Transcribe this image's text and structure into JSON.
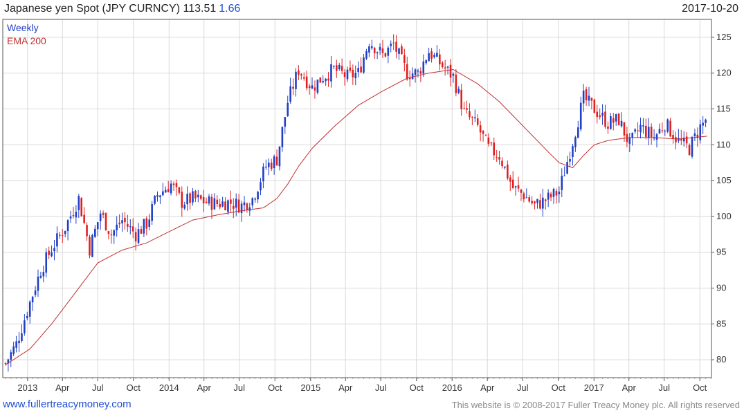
{
  "header": {
    "title": "Japanese yen Spot (JPY CURNCY)",
    "last": "113.51",
    "change": "1.66",
    "date": "2017-10-20"
  },
  "footer": {
    "site": "www.fullertreacymoney.com",
    "copyright": "This website is © 2008-2017 Fuller Treacy Money plc. All rights reserved"
  },
  "colors": {
    "up": "#1f3fc7",
    "down": "#e02020",
    "ema": "#c03030",
    "grid": "#d9d9d9",
    "frame": "#555555"
  },
  "chart_data": {
    "type": "candlestick",
    "interval": "Weekly",
    "legend": [
      "Weekly",
      "EMA 200"
    ],
    "yaxis_side": "right",
    "ylim": [
      77.5,
      127.5
    ],
    "yticks": [
      80,
      85,
      90,
      95,
      100,
      105,
      110,
      115,
      120,
      125
    ],
    "xlim": [
      "2012-10-29",
      "2017-10-31"
    ],
    "xticks": [
      {
        "label": "2013",
        "date": "2013-01-01"
      },
      {
        "label": "Apr",
        "date": "2013-04-01"
      },
      {
        "label": "Jul",
        "date": "2013-07-01"
      },
      {
        "label": "Oct",
        "date": "2013-10-01"
      },
      {
        "label": "2014",
        "date": "2014-01-01"
      },
      {
        "label": "Apr",
        "date": "2014-04-01"
      },
      {
        "label": "Jul",
        "date": "2014-07-01"
      },
      {
        "label": "Oct",
        "date": "2014-10-01"
      },
      {
        "label": "2015",
        "date": "2015-01-01"
      },
      {
        "label": "Apr",
        "date": "2015-04-01"
      },
      {
        "label": "Jul",
        "date": "2015-07-01"
      },
      {
        "label": "Oct",
        "date": "2015-10-01"
      },
      {
        "label": "2016",
        "date": "2016-01-01"
      },
      {
        "label": "Apr",
        "date": "2016-04-01"
      },
      {
        "label": "Jul",
        "date": "2016-07-01"
      },
      {
        "label": "Oct",
        "date": "2016-10-01"
      },
      {
        "label": "2017",
        "date": "2017-01-01"
      },
      {
        "label": "Apr",
        "date": "2017-04-01"
      },
      {
        "label": "Jul",
        "date": "2017-07-01"
      },
      {
        "label": "Oct",
        "date": "2017-10-01"
      }
    ],
    "price_path": [
      [
        "2012-11-05",
        79.5
      ],
      [
        "2012-12-03",
        82.2
      ],
      [
        "2013-01-07",
        88.0
      ],
      [
        "2013-02-04",
        92.5
      ],
      [
        "2013-03-04",
        95.5
      ],
      [
        "2013-04-08",
        98.5
      ],
      [
        "2013-05-13",
        102.5
      ],
      [
        "2013-06-10",
        95.5
      ],
      [
        "2013-07-08",
        100.5
      ],
      [
        "2013-08-05",
        97.5
      ],
      [
        "2013-09-02",
        99.5
      ],
      [
        "2013-10-07",
        97.5
      ],
      [
        "2013-11-04",
        99.0
      ],
      [
        "2013-12-02",
        103.0
      ],
      [
        "2014-01-06",
        104.5
      ],
      [
        "2014-02-03",
        102.0
      ],
      [
        "2014-03-03",
        102.5
      ],
      [
        "2014-04-07",
        102.0
      ],
      [
        "2014-05-05",
        101.8
      ],
      [
        "2014-06-02",
        102.0
      ],
      [
        "2014-07-07",
        101.5
      ],
      [
        "2014-08-04",
        102.5
      ],
      [
        "2014-09-08",
        107.0
      ],
      [
        "2014-10-06",
        108.0
      ],
      [
        "2014-11-03",
        116.0
      ],
      [
        "2014-12-01",
        120.5
      ],
      [
        "2015-01-05",
        118.0
      ],
      [
        "2015-02-02",
        119.5
      ],
      [
        "2015-03-02",
        120.5
      ],
      [
        "2015-04-06",
        119.5
      ],
      [
        "2015-05-04",
        120.0
      ],
      [
        "2015-06-01",
        124.5
      ],
      [
        "2015-07-06",
        122.5
      ],
      [
        "2015-08-03",
        124.0
      ],
      [
        "2015-09-07",
        120.0
      ],
      [
        "2015-10-05",
        120.0
      ],
      [
        "2015-11-02",
        123.0
      ],
      [
        "2015-12-07",
        121.0
      ],
      [
        "2016-01-04",
        119.5
      ],
      [
        "2016-02-01",
        114.5
      ],
      [
        "2016-03-07",
        112.5
      ],
      [
        "2016-04-04",
        109.5
      ],
      [
        "2016-05-02",
        108.5
      ],
      [
        "2016-06-06",
        104.0
      ],
      [
        "2016-07-04",
        103.0
      ],
      [
        "2016-08-01",
        101.5
      ],
      [
        "2016-09-05",
        102.5
      ],
      [
        "2016-10-03",
        103.5
      ],
      [
        "2016-11-07",
        110.5
      ],
      [
        "2016-12-05",
        116.5
      ],
      [
        "2017-01-02",
        115.0
      ],
      [
        "2017-02-06",
        113.0
      ],
      [
        "2017-03-06",
        113.5
      ],
      [
        "2017-04-03",
        110.0
      ],
      [
        "2017-05-01",
        112.5
      ],
      [
        "2017-06-05",
        111.0
      ],
      [
        "2017-07-03",
        113.0
      ],
      [
        "2017-08-07",
        110.5
      ],
      [
        "2017-09-04",
        109.5
      ],
      [
        "2017-10-02",
        112.5
      ],
      [
        "2017-10-20",
        113.51
      ]
    ],
    "ema_200": [
      [
        "2012-11-05",
        79.3
      ],
      [
        "2013-01-07",
        81.5
      ],
      [
        "2013-03-04",
        85.0
      ],
      [
        "2013-05-06",
        89.5
      ],
      [
        "2013-07-01",
        93.5
      ],
      [
        "2013-09-02",
        95.3
      ],
      [
        "2013-11-04",
        96.3
      ],
      [
        "2014-01-06",
        98.0
      ],
      [
        "2014-03-03",
        99.5
      ],
      [
        "2014-05-05",
        100.2
      ],
      [
        "2014-07-07",
        100.8
      ],
      [
        "2014-09-01",
        101.2
      ],
      [
        "2014-10-06",
        102.5
      ],
      [
        "2014-11-03",
        104.5
      ],
      [
        "2014-12-01",
        107.0
      ],
      [
        "2015-01-05",
        109.5
      ],
      [
        "2015-03-02",
        112.5
      ],
      [
        "2015-05-04",
        115.5
      ],
      [
        "2015-07-06",
        117.5
      ],
      [
        "2015-09-07",
        119.3
      ],
      [
        "2015-11-02",
        120.0
      ],
      [
        "2016-01-04",
        120.5
      ],
      [
        "2016-03-07",
        118.5
      ],
      [
        "2016-05-02",
        116.0
      ],
      [
        "2016-07-04",
        112.5
      ],
      [
        "2016-09-05",
        109.0
      ],
      [
        "2016-10-03",
        107.5
      ],
      [
        "2016-11-07",
        106.8
      ],
      [
        "2016-12-05",
        108.5
      ],
      [
        "2017-01-02",
        110.0
      ],
      [
        "2017-02-06",
        110.6
      ],
      [
        "2017-04-03",
        111.0
      ],
      [
        "2017-06-05",
        111.0
      ],
      [
        "2017-08-07",
        110.8
      ],
      [
        "2017-10-20",
        111.2
      ]
    ]
  }
}
